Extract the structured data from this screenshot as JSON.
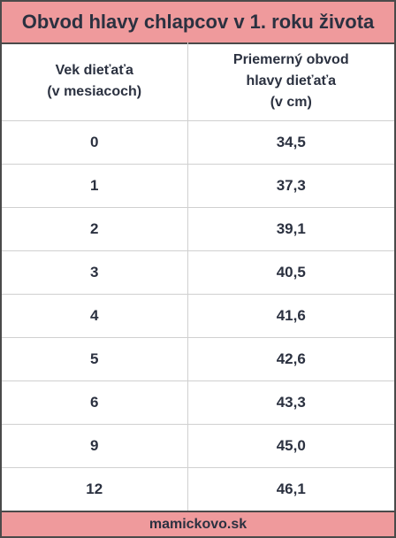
{
  "title": "Obvod hlavy chlapcov v 1. roku života",
  "table": {
    "headers": [
      [
        "Vek dieťaťa",
        "(v mesiacoch)"
      ],
      [
        "Priemerný obvod",
        "hlavy dieťaťa",
        "(v cm)"
      ]
    ],
    "rows": [
      [
        "0",
        "34,5"
      ],
      [
        "1",
        "37,3"
      ],
      [
        "2",
        "39,1"
      ],
      [
        "3",
        "40,5"
      ],
      [
        "4",
        "41,6"
      ],
      [
        "5",
        "42,6"
      ],
      [
        "6",
        "43,3"
      ],
      [
        "9",
        "45,0"
      ],
      [
        "12",
        "46,1"
      ]
    ]
  },
  "footer": "mamickovo.sk",
  "colors": {
    "accent": "#ef9a9c",
    "text": "#2b3140",
    "border": "#4a4a4a",
    "grid": "#d0d0d0"
  }
}
